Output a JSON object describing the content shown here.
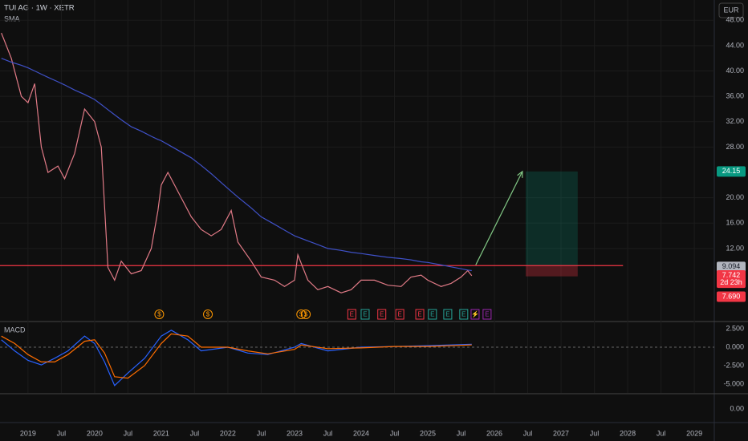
{
  "header": {
    "symbol": "TUI AG · 1W · XETR",
    "indicator": "SMA",
    "currency": "EUR"
  },
  "chart_data": [
    {
      "type": "line",
      "x": [
        2018.6,
        2018.75,
        2018.9,
        2019.0,
        2019.1,
        2019.2,
        2019.3,
        2019.45,
        2019.55,
        2019.7,
        2019.85,
        2020.0,
        2020.1,
        2020.2,
        2020.3,
        2020.4,
        2020.55,
        2020.7,
        2020.85,
        2020.95,
        2021.0,
        2021.1,
        2021.3,
        2021.45,
        2021.6,
        2021.75,
        2021.9,
        2022.05,
        2022.15,
        2022.35,
        2022.5,
        2022.7,
        2022.85,
        2023.0,
        2023.05,
        2023.2,
        2023.35,
        2023.5,
        2023.7,
        2023.85,
        2024.0,
        2024.2,
        2024.4,
        2024.6,
        2024.75,
        2024.9,
        2025.0,
        2025.2,
        2025.35,
        2025.5,
        2025.6,
        2025.66
      ],
      "series": [
        {
          "color": "#e07a86",
          "values": [
            46,
            42,
            36,
            35,
            38,
            28,
            24,
            25,
            23,
            27,
            34,
            32,
            28,
            9,
            7,
            10,
            8,
            8.5,
            12,
            18,
            22,
            24,
            20,
            17,
            15,
            14,
            15,
            18,
            13,
            10,
            7.5,
            7,
            6,
            7,
            11,
            7,
            5.5,
            6,
            5,
            5.5,
            7,
            7,
            6.2,
            6,
            7.5,
            7.8,
            7,
            6,
            6.5,
            7.5,
            8.5,
            7.7
          ]
        },
        {
          "name": "SMA",
          "color": "#3f51c8",
          "values": [
            42,
            41.4,
            40.9,
            40.5,
            40,
            39.5,
            39,
            38.3,
            37.8,
            37,
            36.3,
            35.5,
            34.7,
            33.9,
            33.1,
            32.3,
            31.2,
            30.5,
            29.7,
            29.2,
            29,
            28.4,
            27.2,
            26.3,
            25.1,
            23.8,
            22.4,
            21,
            20.1,
            18.4,
            17,
            15.8,
            14.9,
            14,
            13.8,
            13.2,
            12.6,
            12,
            11.7,
            11.4,
            11.2,
            10.9,
            10.6,
            10.4,
            10.2,
            9.9,
            9.8,
            9.4,
            9.1,
            8.8,
            8.6,
            8.5
          ]
        }
      ],
      "xlim": [
        2018.58,
        2029.3
      ],
      "xticks": [
        {
          "value": 2019,
          "label": "2019"
        },
        {
          "value": 2019.5,
          "label": "Jul"
        },
        {
          "value": 2020,
          "label": "2020"
        },
        {
          "value": 2020.5,
          "label": "Jul"
        },
        {
          "value": 2021,
          "label": "2021"
        },
        {
          "value": 2021.5,
          "label": "Jul"
        },
        {
          "value": 2022,
          "label": "2022"
        },
        {
          "value": 2022.5,
          "label": "Jul"
        },
        {
          "value": 2023,
          "label": "2023"
        },
        {
          "value": 2023.5,
          "label": "Jul"
        },
        {
          "value": 2024,
          "label": "2024"
        },
        {
          "value": 2024.5,
          "label": "Jul"
        },
        {
          "value": 2025,
          "label": "2025"
        },
        {
          "value": 2025.5,
          "label": "Jul"
        },
        {
          "value": 2026,
          "label": "2026"
        },
        {
          "value": 2026.5,
          "label": "Jul"
        },
        {
          "value": 2027,
          "label": "2027"
        },
        {
          "value": 2027.5,
          "label": "Jul"
        },
        {
          "value": 2028,
          "label": "2028"
        },
        {
          "value": 2028.5,
          "label": "Jul"
        },
        {
          "value": 2029,
          "label": "2029"
        }
      ],
      "ylim": [
        0.6,
        51.2
      ],
      "yticks": [
        {
          "value": 12,
          "label": "12.00"
        },
        {
          "value": 16,
          "label": "16.00"
        },
        {
          "value": 20,
          "label": "20.00"
        },
        {
          "value": 28,
          "label": "28.00"
        },
        {
          "value": 32,
          "label": "32.00"
        },
        {
          "value": 36,
          "label": "36.00"
        },
        {
          "value": 40,
          "label": "40.00"
        },
        {
          "value": 44,
          "label": "44.00"
        },
        {
          "value": 48,
          "label": "48.00"
        }
      ],
      "grid": true,
      "horizontal_line": {
        "value": 9.3,
        "end": 2027.93,
        "color": "#f23645"
      },
      "position": {
        "start": 2026.47,
        "end": 2027.25,
        "entry": 9.3,
        "target": 24.15,
        "stop": 7.6
      },
      "arrow": {
        "x": [
          2025.72,
          2026.42
        ],
        "y": [
          9.4,
          24.15
        ],
        "color": "#81c784"
      },
      "price_labels": [
        {
          "value": 24.15,
          "label": "24.15",
          "color": "#089981"
        },
        {
          "value": 9.094,
          "label": "9.094",
          "color": "#b2b5be"
        },
        {
          "value": 7.742,
          "label": "7.742",
          "color": "#f23645"
        },
        {
          "value": 6.6,
          "label": "2d 23h",
          "color": "#f23645"
        },
        {
          "value": 4.4,
          "label": "7.690",
          "color": "#f23645"
        }
      ],
      "events": [
        {
          "x": 2020.97,
          "label": "$",
          "color": "#ff9800"
        },
        {
          "x": 2021.7,
          "label": "$",
          "color": "#ff9800"
        },
        {
          "x": 2023.1,
          "label": "$",
          "color": "#ff9800"
        },
        {
          "x": 2023.17,
          "label": "$",
          "color": "#ff9800"
        },
        {
          "x": 2023.86,
          "label": "E",
          "color": "#f23645"
        },
        {
          "x": 2024.06,
          "label": "E",
          "color": "#26a69a"
        },
        {
          "x": 2024.31,
          "label": "E",
          "color": "#f23645"
        },
        {
          "x": 2024.58,
          "label": "E",
          "color": "#f23645"
        },
        {
          "x": 2024.88,
          "label": "E",
          "color": "#f23645"
        },
        {
          "x": 2025.07,
          "label": "E",
          "color": "#26a69a"
        },
        {
          "x": 2025.3,
          "label": "E",
          "color": "#26a69a"
        },
        {
          "x": 2025.54,
          "label": "E",
          "color": "#26a69a"
        },
        {
          "x": 2025.71,
          "label": "⚡",
          "color": "#9c27b0"
        },
        {
          "x": 2025.89,
          "label": "E",
          "color": "#9c27b0"
        }
      ]
    },
    {
      "type": "line",
      "title": "MACD",
      "x": [
        2018.6,
        2018.8,
        2019.0,
        2019.2,
        2019.4,
        2019.6,
        2019.85,
        2020.0,
        2020.15,
        2020.3,
        2020.5,
        2020.75,
        2021.0,
        2021.15,
        2021.4,
        2021.6,
        2022.0,
        2022.3,
        2022.6,
        2023.0,
        2023.1,
        2023.5,
        2024.0,
        2024.5,
        2025.0,
        2025.66
      ],
      "series": [
        {
          "color": "#2962ff",
          "values": [
            1,
            -0.5,
            -1.8,
            -2.4,
            -1.5,
            -0.5,
            1.5,
            0.5,
            -2,
            -5.2,
            -3.5,
            -1.5,
            1.5,
            2.3,
            1,
            -0.5,
            0,
            -0.8,
            -1,
            0,
            0.5,
            -0.5,
            0,
            0.1,
            0.2,
            0.4
          ]
        },
        {
          "color": "#ff6d00",
          "values": [
            1.5,
            0.5,
            -1,
            -2,
            -2,
            -1,
            0.8,
            1,
            -0.8,
            -4,
            -4.2,
            -2.5,
            0.5,
            1.8,
            1.5,
            0,
            0,
            -0.5,
            -0.9,
            -0.3,
            0.3,
            -0.2,
            -0.1,
            0.1,
            0.1,
            0.3
          ]
        }
      ],
      "xlim": [
        2018.58,
        2029.3
      ],
      "ylim": [
        -6.2,
        3.37
      ],
      "yticks": [
        {
          "value": 2.5,
          "label": "2.500"
        },
        {
          "value": 0,
          "label": "0.000"
        },
        {
          "value": -2.5,
          "label": "-2.500"
        },
        {
          "value": -5,
          "label": "-5.000"
        }
      ],
      "zero_line": true
    }
  ],
  "lower_pane": {
    "yticks": [
      {
        "value": 0,
        "label": "0.00"
      }
    ]
  }
}
